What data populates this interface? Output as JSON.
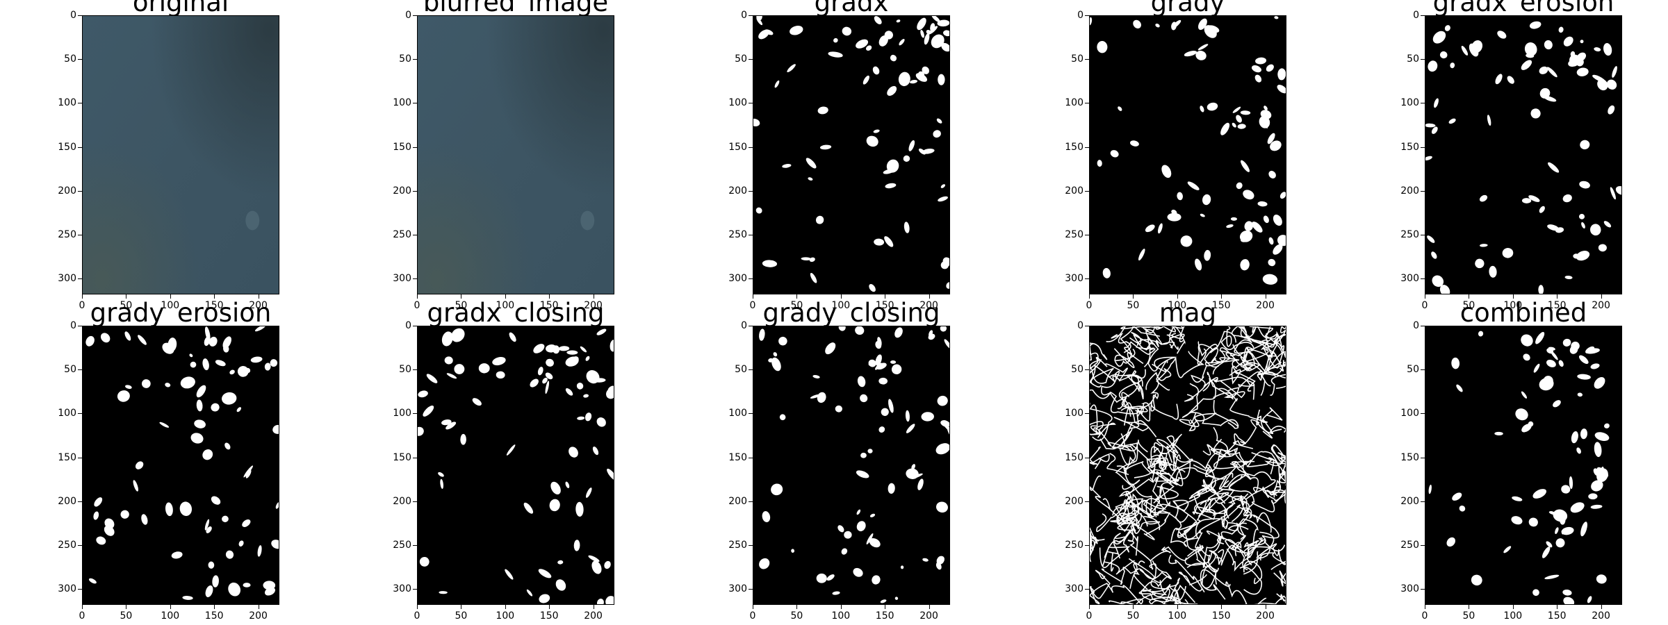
{
  "figure": {
    "panels": [
      {
        "title": "original",
        "style": "photo"
      },
      {
        "title": "blurred_image",
        "style": "photo"
      },
      {
        "title": "gradx",
        "style": "binary-blobs"
      },
      {
        "title": "grady",
        "style": "binary-blobs"
      },
      {
        "title": "gradx_erosion",
        "style": "binary-blobs"
      },
      {
        "title": "grady_erosion",
        "style": "binary-blobs"
      },
      {
        "title": "gradx_closing",
        "style": "binary-blobs"
      },
      {
        "title": "grady_closing",
        "style": "binary-blobs"
      },
      {
        "title": "mag",
        "style": "edges"
      },
      {
        "title": "combined",
        "style": "binary-blobs"
      }
    ],
    "yticks": [
      "0",
      "50",
      "100",
      "150",
      "200",
      "250",
      "300"
    ],
    "xticks": [
      "0",
      "50",
      "100",
      "150",
      "200"
    ],
    "colors": {
      "photo_base": "#3d5563",
      "photo_dark": "#2b3a41",
      "binary_bg": "#000000",
      "binary_fg": "#ffffff"
    }
  }
}
